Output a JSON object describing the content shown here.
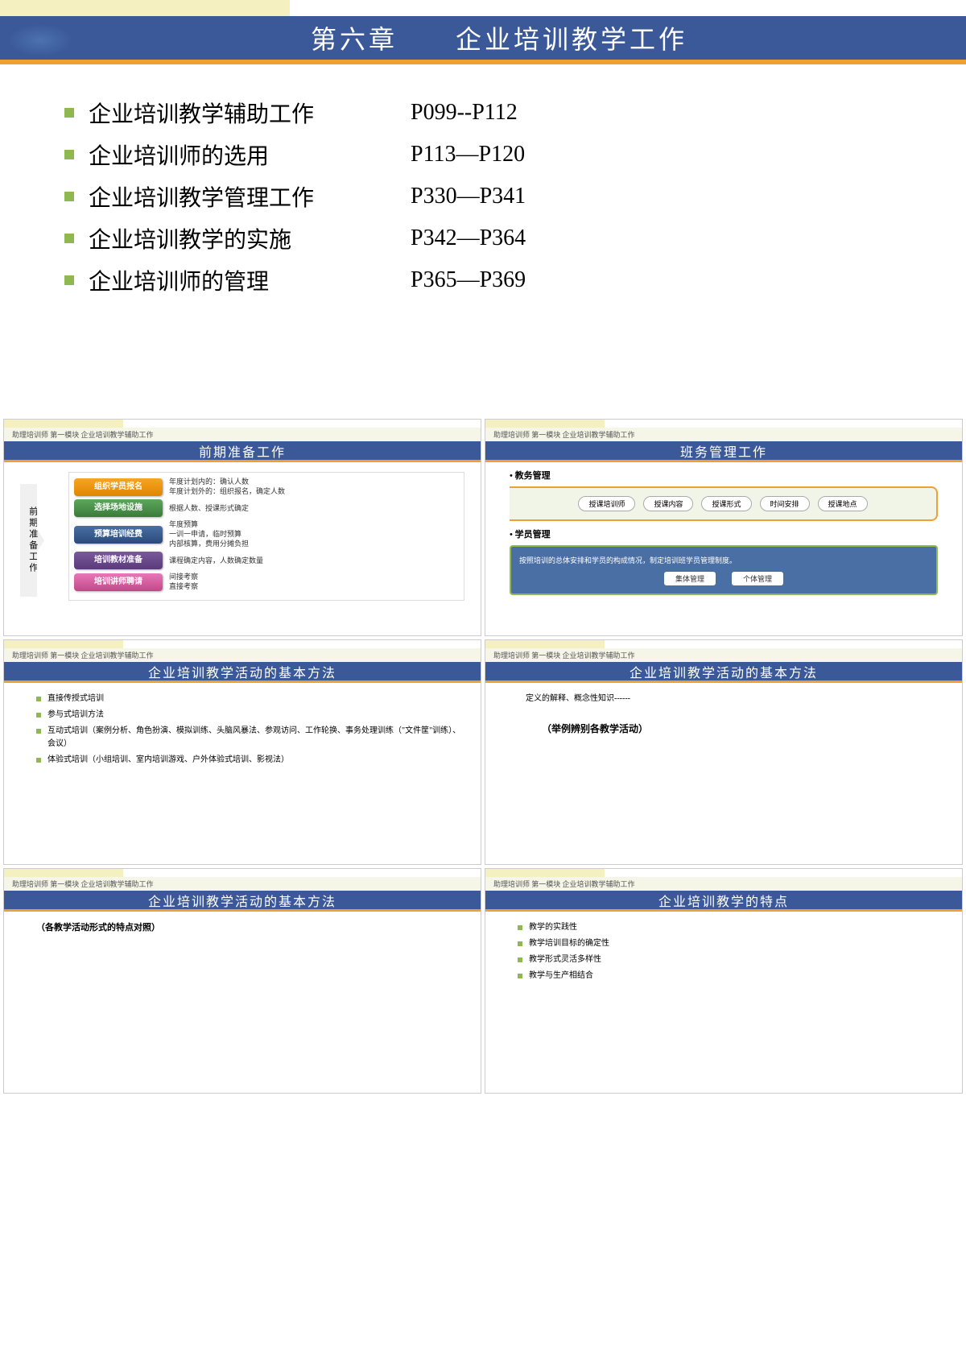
{
  "colors": {
    "title_bg": "#3b5998",
    "accent_orange": "#f0a030",
    "bullet_green": "#8fb850",
    "cream": "#f5f0c0"
  },
  "main": {
    "title": "第六章　　企业培训教学工作",
    "toc": [
      {
        "label": "企业培训教学辅助工作",
        "pages": "P099--P112"
      },
      {
        "label": "企业培训师的选用",
        "pages": "P113—P120"
      },
      {
        "label": "企业培训教学管理工作",
        "pages": "P330—P341"
      },
      {
        "label": "企业培训教学的实施",
        "pages": "P342—P364"
      },
      {
        "label": "企业培训师的管理",
        "pages": "P365—P369"
      }
    ]
  },
  "breadcrumb": "助理培训师 第一模块  企业培训教学辅助工作",
  "slide1": {
    "title": "前期准备工作",
    "arrow_label": "前期准备工作",
    "rows": [
      {
        "btn": "组织学员报名",
        "color": "btn-orange",
        "desc": "年度计划内的：确认人数\n年度计划外的：组织报名，确定人数"
      },
      {
        "btn": "选择场地设施",
        "color": "btn-green",
        "desc": "根据人数、授课形式确定"
      },
      {
        "btn": "预算培训经费",
        "color": "btn-blue",
        "desc": "年度预算\n一训一申请，临时预算\n内部核算，费用分摊负担"
      },
      {
        "btn": "培训教材准备",
        "color": "btn-purple",
        "desc": "课程确定内容，人数确定数量"
      },
      {
        "btn": "培训讲师聘请",
        "color": "btn-pink",
        "desc": "间接考察\n直接考察"
      }
    ]
  },
  "slide2": {
    "title": "班务管理工作",
    "sec1_h": "• 教务管理",
    "sec1_pills": [
      "授课培训师",
      "授课内容",
      "授课形式",
      "时间安排",
      "授课地点"
    ],
    "sec2_h": "• 学员管理",
    "sec2_text": "按照培训的总体安排和学员的构成情况，制定培训班学员管理制度。",
    "sec2_pills": [
      "集体管理",
      "个体管理"
    ]
  },
  "slide3": {
    "title": "企业培训教学活动的基本方法",
    "items": [
      "直接传授式培训",
      "参与式培训方法",
      "互动式培训（案例分析、角色扮演、模拟训练、头脑风暴法、参观访问、工作轮换、事务处理训练（\"文件筐\"训练）、会议）",
      "体验式培训（小组培训、室内培训游戏、户外体验式培训、影视法）"
    ]
  },
  "slide4": {
    "title": "企业培训教学活动的基本方法",
    "def": "定义的解释、概念性知识------",
    "example": "（举例辨别各教学活动）"
  },
  "slide5": {
    "title": "企业培训教学活动的基本方法",
    "text": "（各教学活动形式的特点对照）"
  },
  "slide6": {
    "title": "企业培训教学的特点",
    "items": [
      "教学的实践性",
      "教学培训目标的确定性",
      "教学形式灵活多样性",
      "教学与生产相结合"
    ]
  }
}
